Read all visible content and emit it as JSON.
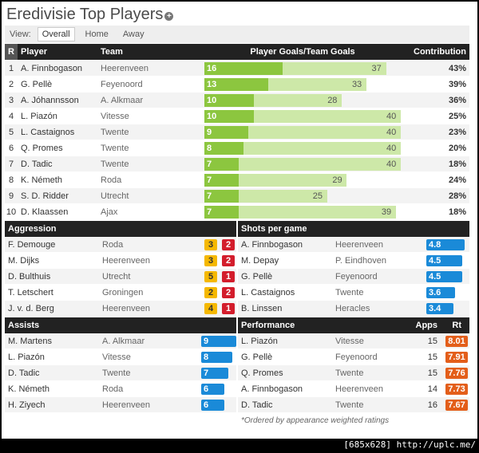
{
  "title": "Eredivisie Top Players",
  "view": {
    "label": "View:",
    "tabs": [
      "Overall",
      "Home",
      "Away"
    ],
    "active": "Overall"
  },
  "players_header": {
    "r": "R",
    "player": "Player",
    "team": "Team",
    "goals": "Player Goals/Team Goals",
    "contribution": "Contribution"
  },
  "players": [
    {
      "rank": "1",
      "name": "A. Finnbogason",
      "team": "Heerenveen",
      "goals": 16,
      "team_goals": 37,
      "contribution": "43%"
    },
    {
      "rank": "2",
      "name": "G. Pellè",
      "team": "Feyenoord",
      "goals": 13,
      "team_goals": 33,
      "contribution": "39%"
    },
    {
      "rank": "3",
      "name": "A. Jóhannsson",
      "team": "A. Alkmaar",
      "goals": 10,
      "team_goals": 28,
      "contribution": "36%"
    },
    {
      "rank": "4",
      "name": "L. Piazón",
      "team": "Vitesse",
      "goals": 10,
      "team_goals": 40,
      "contribution": "25%"
    },
    {
      "rank": "5",
      "name": "L. Castaignos",
      "team": "Twente",
      "goals": 9,
      "team_goals": 40,
      "contribution": "23%"
    },
    {
      "rank": "6",
      "name": "Q. Promes",
      "team": "Twente",
      "goals": 8,
      "team_goals": 40,
      "contribution": "20%"
    },
    {
      "rank": "7",
      "name": "D. Tadic",
      "team": "Twente",
      "goals": 7,
      "team_goals": 40,
      "contribution": "18%"
    },
    {
      "rank": "8",
      "name": "K. Németh",
      "team": "Roda",
      "goals": 7,
      "team_goals": 29,
      "contribution": "24%"
    },
    {
      "rank": "9",
      "name": "S. D. Ridder",
      "team": "Utrecht",
      "goals": 7,
      "team_goals": 25,
      "contribution": "28%"
    },
    {
      "rank": "10",
      "name": "D. Klaassen",
      "team": "Ajax",
      "goals": 7,
      "team_goals": 39,
      "contribution": "18%"
    }
  ],
  "aggression": {
    "title": "Aggression",
    "rows": [
      {
        "name": "F. Demouge",
        "team": "Roda",
        "yellow": "3",
        "red": "2"
      },
      {
        "name": "M. Dijks",
        "team": "Heerenveen",
        "yellow": "3",
        "red": "2"
      },
      {
        "name": "D. Bulthuis",
        "team": "Utrecht",
        "yellow": "5",
        "red": "1"
      },
      {
        "name": "T. Letschert",
        "team": "Groningen",
        "yellow": "2",
        "red": "2"
      },
      {
        "name": "J. v. d. Berg",
        "team": "Heerenveen",
        "yellow": "4",
        "red": "1"
      }
    ]
  },
  "shots": {
    "title": "Shots per game",
    "rows": [
      {
        "name": "A. Finnbogason",
        "team": "Heerenveen",
        "value": "4.8"
      },
      {
        "name": "M. Depay",
        "team": "P. Eindhoven",
        "value": "4.5"
      },
      {
        "name": "G. Pellè",
        "team": "Feyenoord",
        "value": "4.5"
      },
      {
        "name": "L. Castaignos",
        "team": "Twente",
        "value": "3.6"
      },
      {
        "name": "B. Linssen",
        "team": "Heracles",
        "value": "3.4"
      }
    ]
  },
  "assists": {
    "title": "Assists",
    "rows": [
      {
        "name": "M. Martens",
        "team": "A. Alkmaar",
        "value": "9"
      },
      {
        "name": "L. Piazón",
        "team": "Vitesse",
        "value": "8"
      },
      {
        "name": "D. Tadic",
        "team": "Twente",
        "value": "7"
      },
      {
        "name": "K. Németh",
        "team": "Roda",
        "value": "6"
      },
      {
        "name": "H. Ziyech",
        "team": "Heerenveen",
        "value": "6"
      }
    ]
  },
  "performance": {
    "title": "Performance",
    "apps_label": "Apps",
    "rt_label": "Rt",
    "rows": [
      {
        "name": "L. Piazón",
        "team": "Vitesse",
        "apps": "15",
        "rating": "8.01"
      },
      {
        "name": "G. Pellè",
        "team": "Feyenoord",
        "apps": "15",
        "rating": "7.91"
      },
      {
        "name": "Q. Promes",
        "team": "Twente",
        "apps": "15",
        "rating": "7.76"
      },
      {
        "name": "A. Finnbogason",
        "team": "Heerenveen",
        "apps": "14",
        "rating": "7.73"
      },
      {
        "name": "D. Tadic",
        "team": "Twente",
        "apps": "16",
        "rating": "7.67"
      }
    ],
    "footnote": "*Ordered by appearance weighted ratings"
  },
  "watermark": "[685x628] http://uplc.me/",
  "colors": {
    "player_bar": "#8cc63f",
    "team_bar": "#cde8a8",
    "blue": "#1a8ad8",
    "orange": "#e35e1a",
    "yellow": "#f5b800",
    "red": "#d31d2c"
  }
}
